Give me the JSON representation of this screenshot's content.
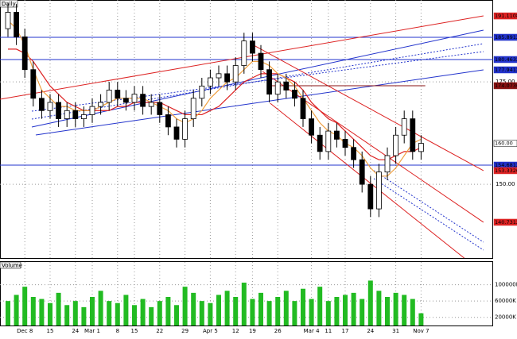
{
  "chart_data": {
    "type": "candlestick",
    "title": "Daily",
    "categories": [
      null,
      null,
      "Dec 8",
      null,
      null,
      "15",
      null,
      null,
      "24",
      null,
      "Mar 1",
      null,
      null,
      "8",
      null,
      "15",
      null,
      null,
      "22",
      null,
      null,
      "29",
      null,
      null,
      "Apr 5",
      null,
      null,
      "12",
      null,
      "19",
      null,
      null,
      "26",
      null,
      null,
      null,
      "Mar 4",
      null,
      "11",
      null,
      "17",
      null,
      null,
      "24",
      null,
      null,
      "31",
      null,
      null,
      "Nov 7"
    ],
    "open": [
      188,
      192,
      186,
      178,
      171,
      168,
      170,
      166,
      168,
      166,
      167,
      169,
      170,
      173,
      171,
      170,
      172,
      169,
      170,
      167,
      164,
      161,
      166,
      171,
      174,
      176,
      177,
      175,
      179,
      185,
      182,
      178,
      172,
      175,
      173,
      171,
      166,
      162,
      158,
      163,
      161,
      159,
      156,
      150,
      144,
      153,
      157,
      162,
      166,
      158
    ],
    "high": [
      194,
      194,
      188,
      180,
      173,
      172,
      172,
      170,
      170,
      169,
      171,
      172,
      175,
      175,
      173,
      174,
      174,
      172,
      172,
      169,
      166,
      168,
      173,
      176,
      178,
      179,
      179,
      181,
      187,
      187,
      184,
      180,
      177,
      177,
      175,
      173,
      168,
      164,
      165,
      165,
      163,
      161,
      158,
      152,
      155,
      159,
      164,
      168,
      168,
      162
    ],
    "low": [
      186,
      184,
      176,
      169,
      166,
      166,
      164,
      164,
      164,
      164,
      165,
      167,
      168,
      169,
      168,
      168,
      167,
      167,
      165,
      162,
      159,
      159,
      164,
      169,
      172,
      174,
      173,
      173,
      177,
      180,
      176,
      170,
      170,
      171,
      169,
      164,
      160,
      156,
      156,
      159,
      157,
      154,
      148,
      142,
      142,
      151,
      155,
      160,
      156,
      156
    ],
    "close": [
      192,
      186,
      178,
      171,
      168,
      170,
      166,
      168,
      166,
      167,
      169,
      170,
      173,
      171,
      170,
      172,
      169,
      170,
      167,
      164,
      161,
      166,
      171,
      174,
      176,
      177,
      175,
      179,
      185,
      182,
      178,
      172,
      175,
      173,
      171,
      166,
      162,
      158,
      163,
      161,
      159,
      156,
      150,
      144,
      153,
      157,
      162,
      166,
      158,
      160
    ],
    "up_color": "#ffffff",
    "down_color": "#000000",
    "ylim": [
      132,
      195
    ],
    "yticks": [
      {
        "value": 150,
        "label": "150.00"
      },
      {
        "value": 175,
        "label": "175.00"
      }
    ],
    "grid": true,
    "moving_averages": [
      {
        "color": "#dd2222",
        "values": [
          183,
          183,
          182,
          180,
          177,
          174,
          172,
          170,
          169,
          168,
          168,
          168,
          168,
          169,
          169,
          170,
          170,
          170,
          170,
          169,
          168,
          167,
          167,
          167,
          168,
          169,
          171,
          173,
          175,
          176,
          177,
          177,
          177,
          176,
          175,
          173,
          170,
          168,
          166,
          165,
          163,
          161,
          159,
          157,
          156,
          156,
          157,
          158,
          158,
          159
        ]
      },
      {
        "color": "#f0a040",
        "values": [
          190,
          188,
          184,
          178,
          173,
          171,
          169,
          169,
          168,
          168,
          168,
          169,
          170,
          171,
          171,
          171,
          171,
          170,
          169,
          168,
          166,
          165,
          166,
          168,
          171,
          173,
          175,
          176,
          178,
          180,
          180,
          179,
          177,
          176,
          174,
          171,
          168,
          165,
          163,
          162,
          160,
          159,
          157,
          154,
          152,
          152,
          154,
          157,
          160,
          161
        ]
      }
    ],
    "trend_lines": [
      {
        "x": [
          -0.94,
          56.4
        ],
        "y": [
          170.77,
          191.12
        ],
        "color": "#dd2222",
        "dash": false
      },
      {
        "x": [
          3.3,
          56.4
        ],
        "y": [
          162.05,
          177.94
        ],
        "color": "#2233cc",
        "dash": false
      },
      {
        "x": [
          2.83,
          56.4
        ],
        "y": [
          163.99,
          187.63
        ],
        "color": "#2233cc",
        "dash": false
      },
      {
        "x": [
          2.83,
          56.4
        ],
        "y": [
          165.92,
          184.34
        ],
        "color": "#2233cc",
        "dash": true
      },
      {
        "x": [
          2.83,
          56.4
        ],
        "y": [
          167.86,
          182.4
        ],
        "color": "#2233cc",
        "dash": true
      },
      {
        "x": [
          28.8,
          56.4
        ],
        "y": [
          184.34,
          153.33
        ],
        "color": "#dd2222",
        "dash": false
      },
      {
        "x": [
          30.2,
          56.4
        ],
        "y": [
          177.55,
          140.73
        ],
        "color": "#dd2222",
        "dash": false
      },
      {
        "x": [
          31.1,
          54.7
        ],
        "y": [
          169.8,
          131.03
        ],
        "color": "#dd2222",
        "dash": false
      },
      {
        "x": [
          43.4,
          56.4
        ],
        "y": [
          153.33,
          135.88
        ],
        "color": "#2233cc",
        "dash": true
      },
      {
        "x": [
          43.4,
          56.4
        ],
        "y": [
          151.39,
          133.94
        ],
        "color": "#2233cc",
        "dash": true
      },
      {
        "x": [
          31.1,
          49.5
        ],
        "y": [
          174.07,
          174.07
        ],
        "color": "#881111",
        "dash": false
      }
    ],
    "hlines": [
      {
        "value": 185.8912,
        "color": "#2233cc"
      },
      {
        "value": 180.4632,
        "color": "#2233cc"
      },
      {
        "value": 154.6812,
        "color": "#2233cc"
      }
    ],
    "price_markers": [
      {
        "value": 191.1108,
        "color": "#dd2222"
      },
      {
        "value": 185.8912,
        "color": "#2233cc"
      },
      {
        "value": 180.4632,
        "color": "#2233cc"
      },
      {
        "value": 177.9412,
        "color": "#2233cc"
      },
      {
        "value": 174.0736,
        "color": "#881111"
      },
      {
        "value": 160,
        "label": "160.00",
        "color": "#ffffff"
      },
      {
        "value": 154.6812,
        "color": "#2233cc"
      },
      {
        "value": 153.3326,
        "color": "#dd2222"
      },
      {
        "value": 140.7312,
        "color": "#dd2222"
      }
    ],
    "volume": {
      "title": "Volume",
      "color": "#22bb22",
      "values": [
        60000,
        75000,
        95000,
        70000,
        65000,
        55000,
        80000,
        50000,
        60000,
        45000,
        70000,
        85000,
        60000,
        55000,
        75000,
        50000,
        65000,
        45000,
        60000,
        70000,
        50000,
        95000,
        80000,
        60000,
        55000,
        75000,
        85000,
        70000,
        105000,
        65000,
        80000,
        60000,
        70000,
        85000,
        60000,
        90000,
        65000,
        95000,
        60000,
        70000,
        75000,
        80000,
        65000,
        110000,
        85000,
        70000,
        80000,
        75000,
        65000,
        30000
      ],
      "ylim": [
        0,
        140000
      ],
      "yticks": [
        {
          "value": 20000,
          "label": "20000K"
        },
        {
          "value": 60000,
          "label": "60000K"
        },
        {
          "value": 100000,
          "label": "100000K"
        }
      ]
    }
  }
}
